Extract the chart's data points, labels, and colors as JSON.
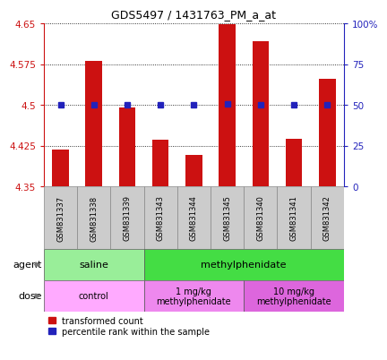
{
  "title": "GDS5497 / 1431763_PM_a_at",
  "samples": [
    "GSM831337",
    "GSM831338",
    "GSM831339",
    "GSM831343",
    "GSM831344",
    "GSM831345",
    "GSM831340",
    "GSM831341",
    "GSM831342"
  ],
  "bar_values": [
    4.418,
    4.581,
    4.495,
    4.435,
    4.408,
    4.648,
    4.617,
    4.438,
    4.548
  ],
  "dot_values": [
    4.5,
    4.5,
    4.5,
    4.5,
    4.5,
    4.502,
    4.5,
    4.5,
    4.5
  ],
  "ylim": [
    4.35,
    4.65
  ],
  "yticks_left": [
    4.35,
    4.425,
    4.5,
    4.575,
    4.65
  ],
  "yticks_right": [
    0,
    25,
    50,
    75,
    100
  ],
  "bar_color": "#cc1111",
  "dot_color": "#2222bb",
  "agent_groups": [
    {
      "label": "saline",
      "start": 0,
      "end": 3,
      "color": "#99ee99"
    },
    {
      "label": "methylphenidate",
      "start": 3,
      "end": 9,
      "color": "#44dd44"
    }
  ],
  "dose_groups": [
    {
      "label": "control",
      "start": 0,
      "end": 3,
      "color": "#ffaaff"
    },
    {
      "label": "1 mg/kg\nmethylphenidate",
      "start": 3,
      "end": 6,
      "color": "#ee88ee"
    },
    {
      "label": "10 mg/kg\nmethylphenidate",
      "start": 6,
      "end": 9,
      "color": "#dd66dd"
    }
  ],
  "sample_bg": "#cccccc",
  "legend_labels": [
    "transformed count",
    "percentile rank within the sample"
  ],
  "legend_colors": [
    "#cc1111",
    "#2222bb"
  ]
}
